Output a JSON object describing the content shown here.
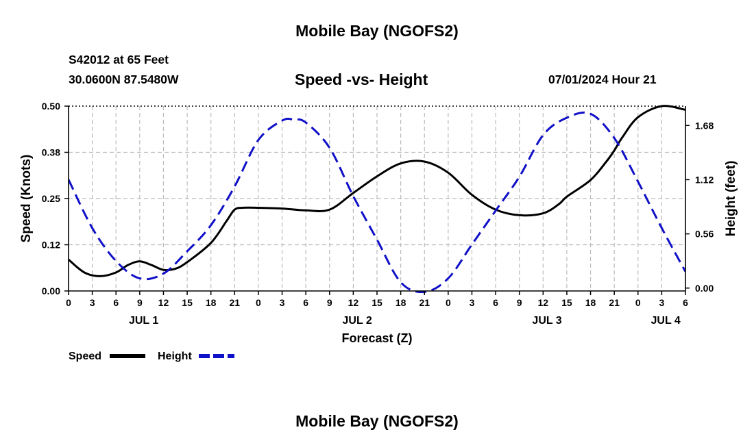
{
  "header": {
    "title": "Mobile Bay (NGOFS2)",
    "station_line": "S42012 at 65 Feet",
    "coords_line": "30.0600N  87.5480W",
    "chart_subtitle": "Speed -vs- Height",
    "timestamp": "07/01/2024 Hour 21"
  },
  "footer": {
    "title": "Mobile Bay (NGOFS2)"
  },
  "colors": {
    "speed": "#000000",
    "height": "#1010c8",
    "grid": "#bbbbbb"
  },
  "chart_data": {
    "type": "line",
    "title": "Speed -vs- Height",
    "xlabel": "Forecast (Z)",
    "ylabel": "Speed (Knots)",
    "y2label": "Height (feet)",
    "x_range_hours": [
      0,
      78
    ],
    "ylim": [
      0,
      0.5
    ],
    "y2lim": [
      -0.03,
      1.88
    ],
    "y_ticks": [
      "0.00",
      "0.12",
      "0.25",
      "0.38",
      "0.50"
    ],
    "y_tick_values": [
      0,
      0.125,
      0.25,
      0.375,
      0.5
    ],
    "y2_ticks": [
      "0.00",
      "0.56",
      "1.12",
      "1.68"
    ],
    "y2_tick_values": [
      0,
      0.56,
      1.12,
      1.68
    ],
    "x_tick_labels": [
      "0",
      "3",
      "6",
      "9",
      "12",
      "15",
      "18",
      "21",
      "0",
      "3",
      "6",
      "9",
      "12",
      "15",
      "18",
      "21",
      "0",
      "3",
      "6",
      "9",
      "12",
      "15",
      "18",
      "21",
      "0",
      "3",
      "6"
    ],
    "date_labels": [
      {
        "label": "JUL 1",
        "hour": 9.5
      },
      {
        "label": "JUL 2",
        "hour": 36.5
      },
      {
        "label": "JUL 3",
        "hour": 60.5
      },
      {
        "label": "JUL 4",
        "hour": 75.5
      }
    ],
    "grid": true,
    "legend_position": "bottom-left",
    "series": [
      {
        "name": "Speed",
        "axis": "left",
        "style": "solid",
        "x": [
          0,
          2,
          4,
          6,
          7.5,
          9,
          10.5,
          12,
          13.5,
          15,
          18,
          20,
          21,
          22,
          24,
          27,
          30,
          33,
          36,
          39,
          42,
          45,
          48,
          51,
          54,
          57,
          60,
          62,
          63,
          66,
          68,
          69,
          70,
          72,
          75,
          78
        ],
        "values": [
          0.085,
          0.05,
          0.04,
          0.05,
          0.07,
          0.08,
          0.07,
          0.057,
          0.06,
          0.078,
          0.13,
          0.19,
          0.22,
          0.225,
          0.225,
          0.223,
          0.218,
          0.22,
          0.265,
          0.31,
          0.345,
          0.35,
          0.32,
          0.26,
          0.22,
          0.205,
          0.21,
          0.235,
          0.255,
          0.3,
          0.35,
          0.38,
          0.415,
          0.47,
          0.5,
          0.49
        ]
      },
      {
        "name": "Height",
        "axis": "right",
        "style": "dashed",
        "x": [
          0,
          3,
          6,
          9,
          12,
          15,
          18,
          21,
          24,
          27,
          28.5,
          30,
          33,
          36,
          39,
          42,
          45,
          48,
          51,
          54,
          57,
          60,
          63,
          66,
          69,
          72,
          75,
          78
        ],
        "values": [
          1.12,
          0.62,
          0.28,
          0.1,
          0.15,
          0.38,
          0.65,
          1.05,
          1.53,
          1.73,
          1.74,
          1.71,
          1.45,
          0.95,
          0.5,
          0.06,
          -0.04,
          0.1,
          0.45,
          0.8,
          1.15,
          1.58,
          1.76,
          1.8,
          1.55,
          1.1,
          0.62,
          0.17
        ]
      }
    ]
  },
  "legend": [
    {
      "name": "Speed",
      "color": "#000000",
      "style": "solid"
    },
    {
      "name": "Height",
      "color": "#1010c8",
      "style": "dashed"
    }
  ]
}
